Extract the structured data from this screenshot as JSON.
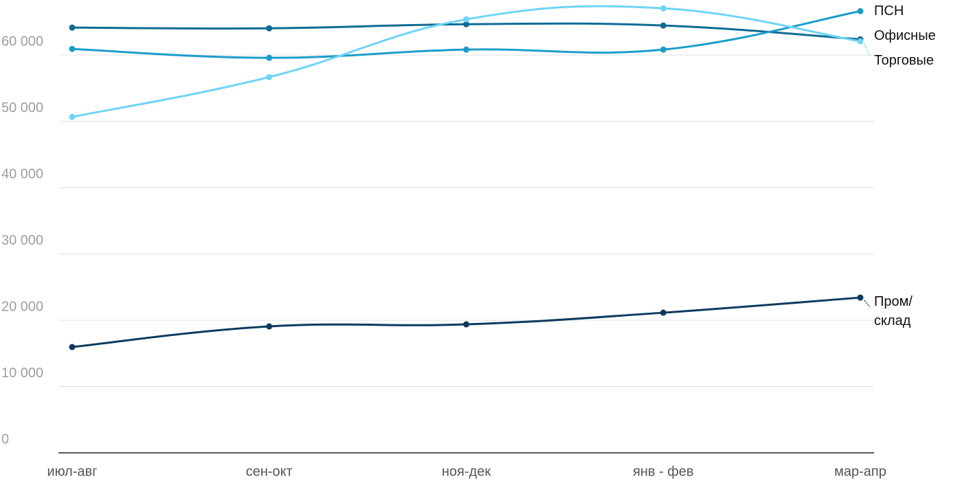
{
  "chart_data": {
    "type": "line",
    "categories": [
      "июл-авг",
      "сен-окт",
      "ноя-дек",
      "янв - фев",
      "мар-апр"
    ],
    "series": [
      {
        "name": "Офисные",
        "color": "#0f6b94",
        "values": [
          64150,
          64040,
          64660,
          64460,
          62380
        ]
      },
      {
        "name": "ПСН",
        "color": "#1c9dc9",
        "values": [
          60930,
          59590,
          60830,
          60830,
          66630
        ]
      },
      {
        "name": "Торговые",
        "color": "#6fd4f6",
        "values": [
          50670,
          56680,
          65390,
          67050,
          62070
        ]
      },
      {
        "name": "Пром/\nсклад",
        "color": "#0b3b5e",
        "values": [
          15960,
          19070,
          19380,
          21140,
          23420
        ]
      }
    ],
    "ylim": [
      0,
      68000
    ],
    "yticks": [
      0,
      {
        "value": 10000,
        "label": "10 000"
      },
      {
        "value": 20000,
        "label": "20 000"
      },
      {
        "value": 30000,
        "label": "30 000"
      },
      {
        "value": 40000,
        "label": "40 000"
      },
      {
        "value": 50000,
        "label": "50 000"
      },
      {
        "value": 60000,
        "label": "60 000"
      }
    ],
    "grid": true
  }
}
